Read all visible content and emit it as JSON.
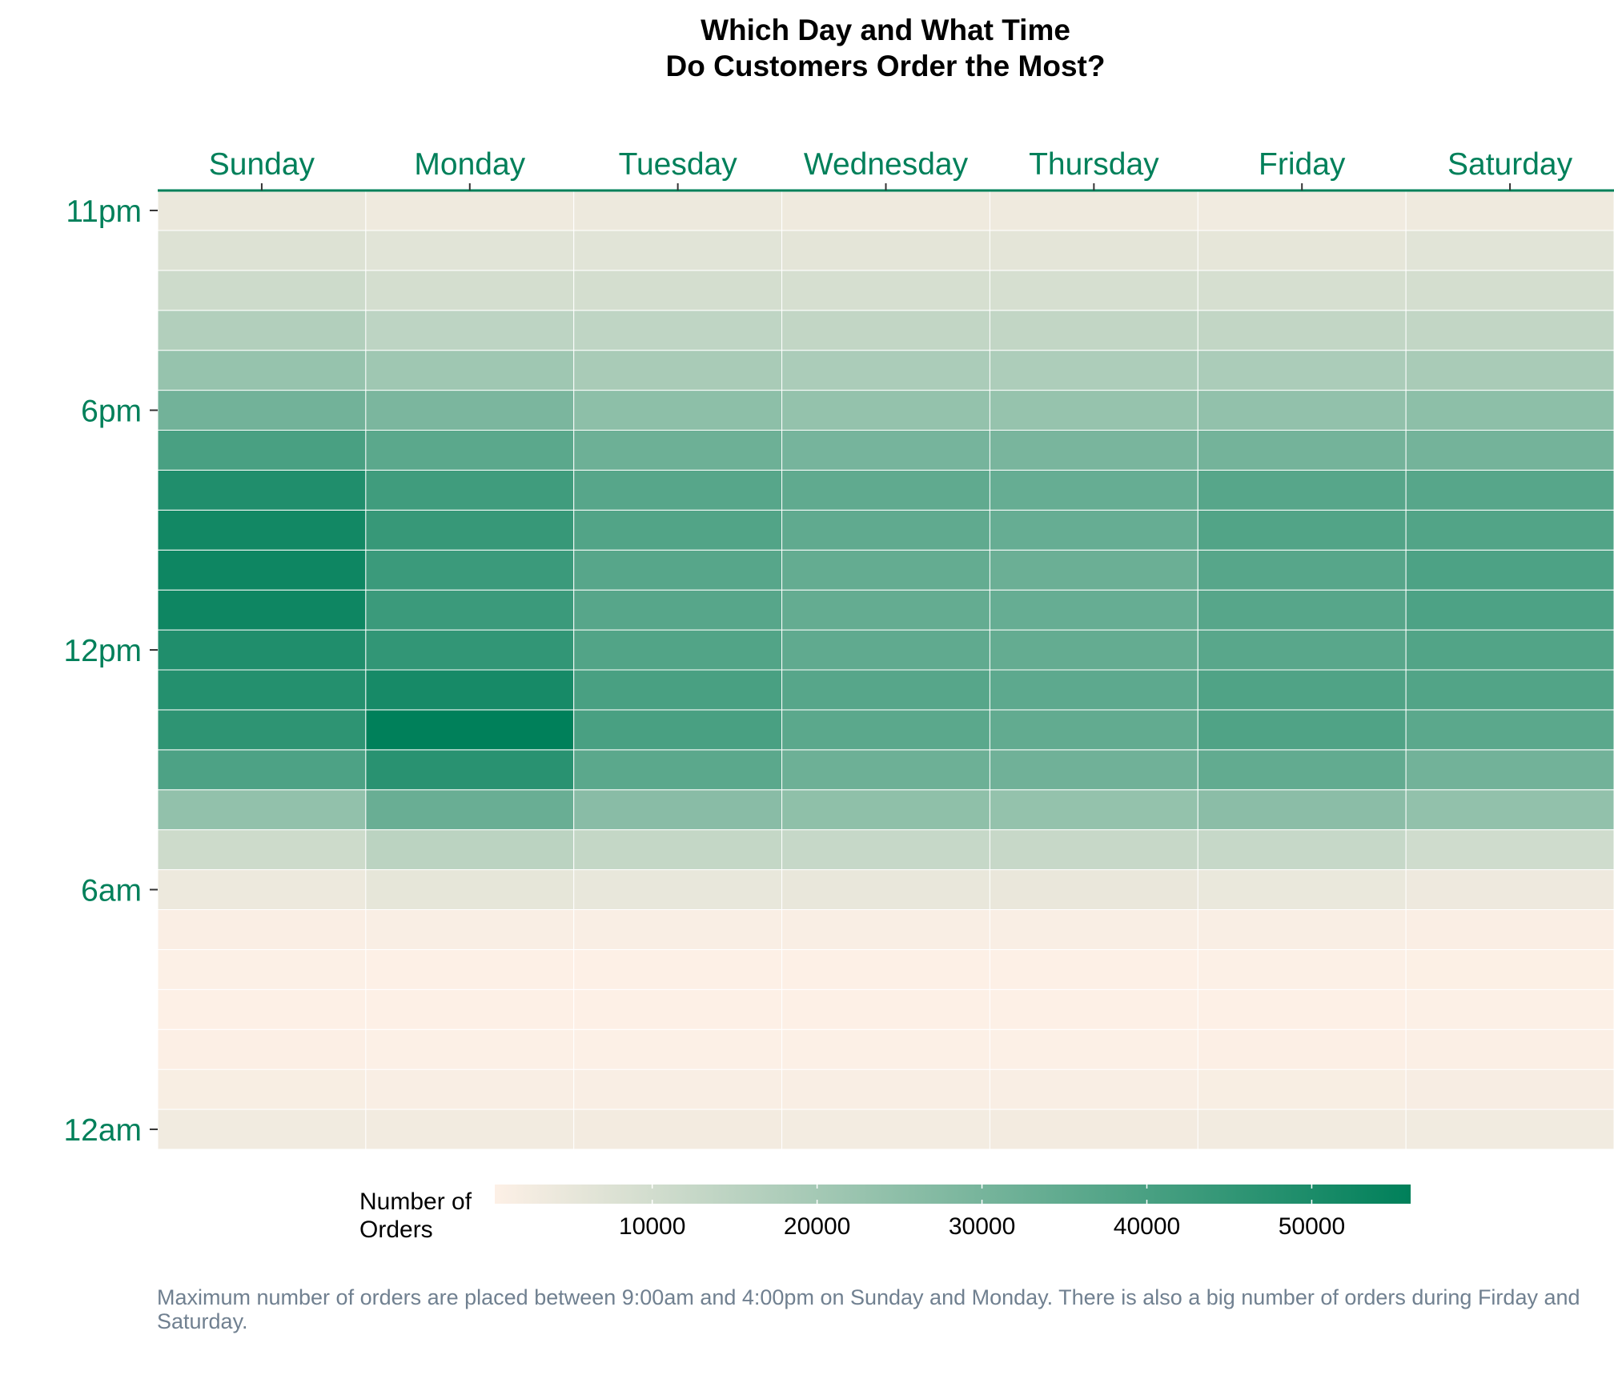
{
  "chart_data": {
    "type": "heatmap",
    "title": [
      "Which Day and What Time",
      "Do Customers Order the Most?"
    ],
    "x_categories": [
      "Sunday",
      "Monday",
      "Tuesday",
      "Wednesday",
      "Thursday",
      "Friday",
      "Saturday"
    ],
    "x_axis_position": "top",
    "y_hours": [
      0,
      1,
      2,
      3,
      4,
      5,
      6,
      7,
      8,
      9,
      10,
      11,
      12,
      13,
      14,
      15,
      16,
      17,
      18,
      19,
      20,
      21,
      22,
      23
    ],
    "y_tick_labels": [
      {
        "hour": 0,
        "label": "12am"
      },
      {
        "hour": 6,
        "label": "6am"
      },
      {
        "hour": 12,
        "label": "12pm"
      },
      {
        "hour": 18,
        "label": "6pm"
      },
      {
        "hour": 23,
        "label": "11pm"
      }
    ],
    "values": [
      [
        3000,
        2900,
        2700,
        2600,
        2700,
        2900,
        3000
      ],
      [
        1500,
        1400,
        1400,
        1400,
        1400,
        1600,
        1800
      ],
      [
        700,
        600,
        600,
        600,
        600,
        700,
        900
      ],
      [
        500,
        450,
        450,
        450,
        450,
        500,
        600
      ],
      [
        600,
        550,
        550,
        550,
        550,
        600,
        650
      ],
      [
        1200,
        1400,
        1300,
        1300,
        1300,
        1300,
        1200
      ],
      [
        4000,
        5500,
        5000,
        4800,
        4700,
        4600,
        3800
      ],
      [
        11000,
        15000,
        13000,
        12500,
        12200,
        12500,
        10500
      ],
      [
        24000,
        33000,
        26000,
        24500,
        23500,
        25500,
        24000
      ],
      [
        39000,
        47000,
        36000,
        32000,
        31500,
        34500,
        31000
      ],
      [
        46000,
        56000,
        40000,
        36000,
        34500,
        38500,
        36000
      ],
      [
        48000,
        51000,
        40000,
        37000,
        35500,
        38500,
        38000
      ],
      [
        49000,
        45000,
        38000,
        35000,
        34000,
        36500,
        38000
      ],
      [
        53000,
        43000,
        37000,
        34000,
        33500,
        37000,
        39000
      ],
      [
        53000,
        43000,
        37000,
        34000,
        32500,
        37000,
        39000
      ],
      [
        52000,
        44000,
        38000,
        35000,
        33500,
        38000,
        38000
      ],
      [
        49000,
        42000,
        37000,
        35000,
        33500,
        37000,
        37000
      ],
      [
        40000,
        36000,
        32000,
        30000,
        29500,
        30500,
        30500
      ],
      [
        31000,
        29000,
        25000,
        23500,
        23000,
        24000,
        25000
      ],
      [
        23000,
        21000,
        19000,
        18500,
        18000,
        18500,
        19000
      ],
      [
        17000,
        14500,
        14000,
        13500,
        13500,
        13500,
        13500
      ],
      [
        11000,
        9500,
        9500,
        9000,
        9000,
        9000,
        9500
      ],
      [
        7500,
        6500,
        6500,
        6000,
        6000,
        5500,
        6500
      ],
      [
        4500,
        3500,
        4000,
        3500,
        3500,
        3000,
        3500
      ]
    ],
    "legend": {
      "title": [
        "Number of",
        "Orders"
      ],
      "ticks": [
        10000,
        20000,
        30000,
        40000,
        50000
      ],
      "min": 450,
      "max": 56000,
      "placement": "bottom"
    },
    "color_low": "#fdf0e6",
    "color_high": "#00805a",
    "axis_color": "#00805a",
    "grid": false
  },
  "caption": "Maximum number of orders are placed between 9:00am and 4:00pm on Sunday and Monday. There is also a big number of orders during Firday and Saturday."
}
